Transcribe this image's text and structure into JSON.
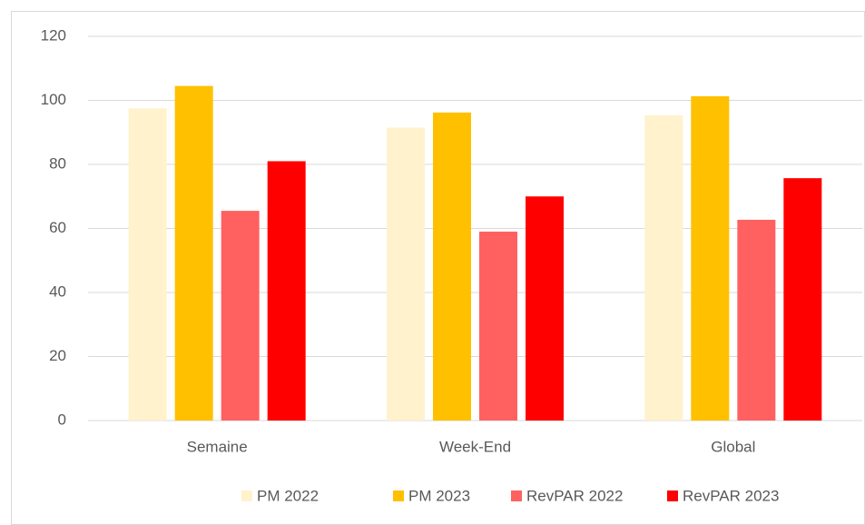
{
  "chart_data": {
    "type": "bar",
    "categories": [
      "Semaine",
      "Week-End",
      "Global"
    ],
    "series": [
      {
        "name": "PM 2022",
        "color": "#FFF2CC",
        "values": [
          97.5,
          91.5,
          95.3
        ]
      },
      {
        "name": "PM 2023",
        "color": "#FFC000",
        "values": [
          104.5,
          96.2,
          101.3
        ]
      },
      {
        "name": "RevPAR 2022",
        "color": "#FF6161",
        "values": [
          65.5,
          59,
          62.7
        ]
      },
      {
        "name": "RevPAR 2023",
        "color": "#FF0000",
        "values": [
          81,
          70,
          75.7
        ]
      }
    ],
    "ylim": [
      0,
      120
    ],
    "yticks": [
      0,
      20,
      40,
      60,
      80,
      100,
      120
    ],
    "grid": true,
    "legend": "bottom"
  }
}
